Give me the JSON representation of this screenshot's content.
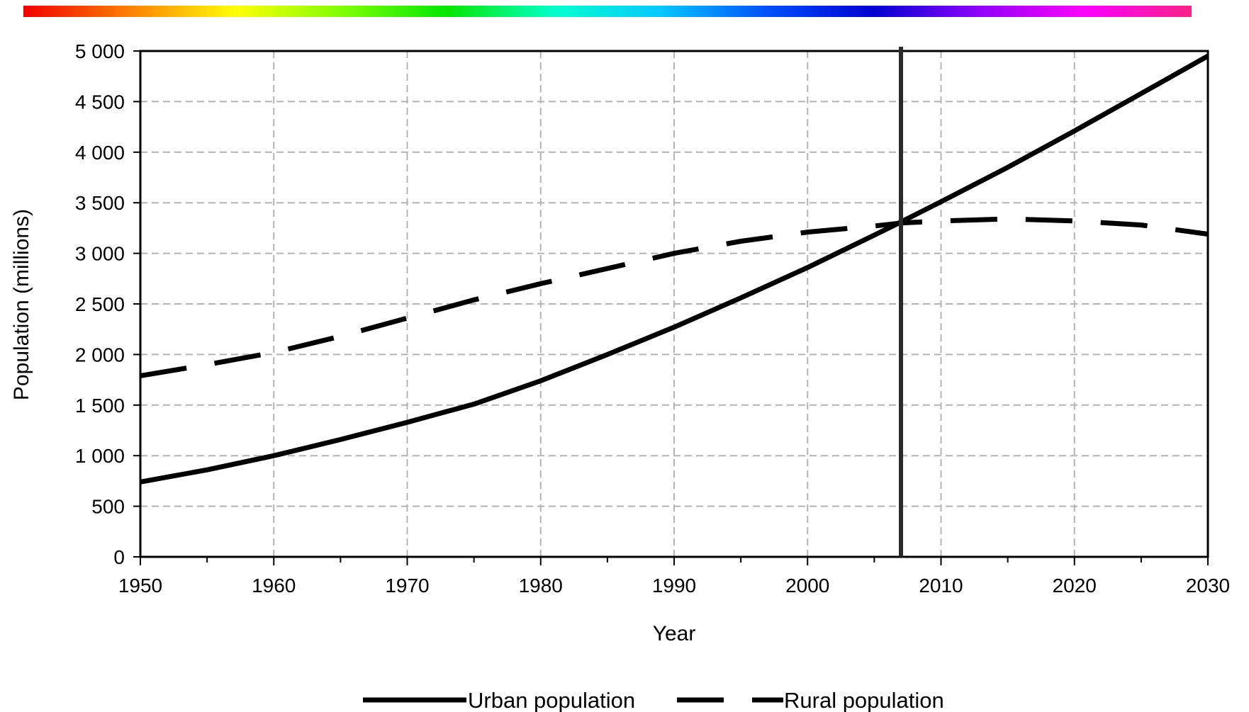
{
  "colors": {
    "rainbow": [
      "#f20000",
      "#ff8000",
      "#ffff00",
      "#80ff00",
      "#00e600",
      "#00ffcc",
      "#00c8ff",
      "#0050ff",
      "#0000d0",
      "#9000ff",
      "#ff00ff",
      "#ff2288"
    ],
    "line": "#000000",
    "grid": "#b4b4b4",
    "marker_line": "#2a2a2a"
  },
  "chart_data": {
    "type": "line",
    "xlabel": "Year",
    "ylabel": "Population (millions)",
    "xlim": [
      1950,
      2030
    ],
    "ylim": [
      0,
      5000
    ],
    "x_ticks": [
      "1950",
      "1960",
      "1970",
      "1980",
      "1990",
      "2000",
      "2010",
      "2020",
      "2030"
    ],
    "y_ticks": [
      "0",
      "500",
      "1 000",
      "1 500",
      "2 000",
      "2 500",
      "3 000",
      "3 500",
      "4 000",
      "4 500",
      "5 000"
    ],
    "grid": true,
    "legend_position": "bottom",
    "vertical_marker_x": 2007,
    "series": [
      {
        "name": "Urban population",
        "style": "solid",
        "x": [
          1950,
          1955,
          1960,
          1965,
          1970,
          1975,
          1980,
          1985,
          1990,
          1995,
          2000,
          2005,
          2007,
          2010,
          2015,
          2020,
          2025,
          2030
        ],
        "values": [
          740,
          860,
          1000,
          1160,
          1330,
          1510,
          1740,
          2000,
          2270,
          2560,
          2860,
          3180,
          3310,
          3510,
          3850,
          4210,
          4580,
          4950
        ]
      },
      {
        "name": "Rural population",
        "style": "dashed",
        "x": [
          1950,
          1955,
          1960,
          1965,
          1970,
          1975,
          1980,
          1985,
          1990,
          1995,
          2000,
          2005,
          2007,
          2010,
          2015,
          2020,
          2025,
          2030
        ],
        "values": [
          1790,
          1900,
          2020,
          2180,
          2360,
          2540,
          2700,
          2850,
          3000,
          3120,
          3210,
          3270,
          3300,
          3320,
          3340,
          3320,
          3280,
          3190
        ]
      }
    ]
  }
}
